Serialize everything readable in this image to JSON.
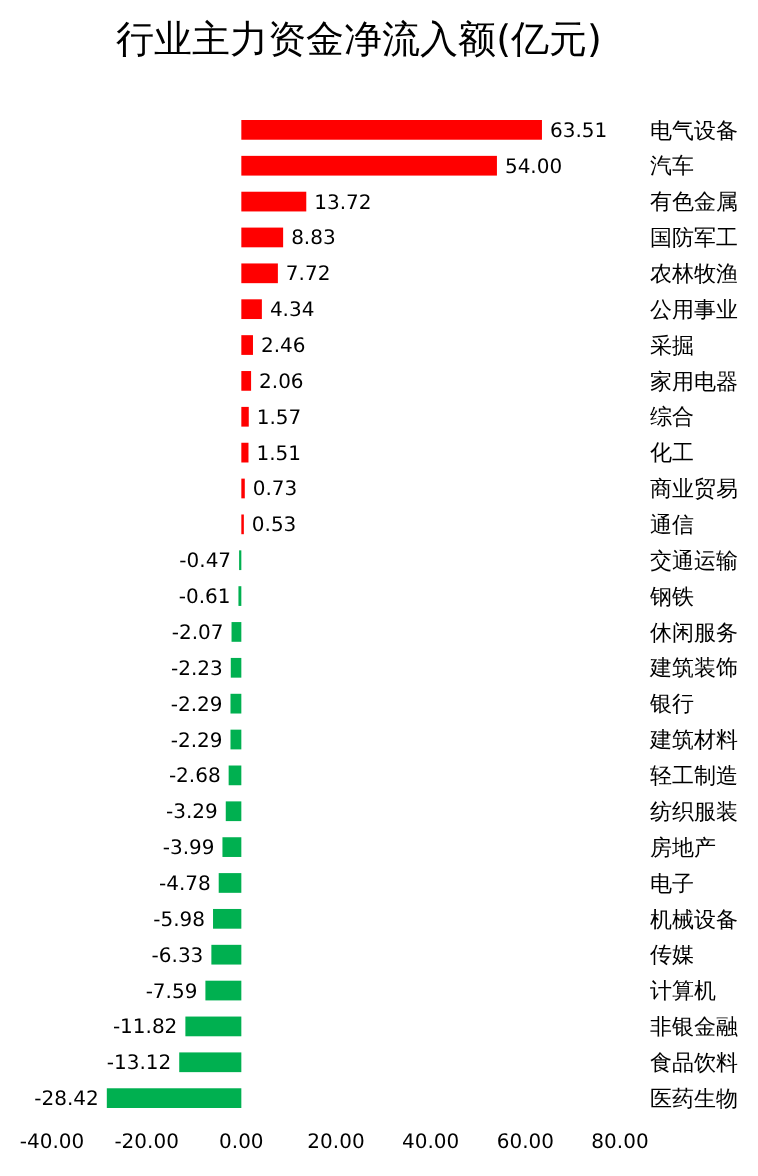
{
  "chart_data": {
    "type": "bar",
    "orientation": "horizontal",
    "title": "行业主力资金净流入额(亿元)",
    "categories": [
      "电气设备",
      "汽车",
      "有色金属",
      "国防军工",
      "农林牧渔",
      "公用事业",
      "采掘",
      "家用电器",
      "综合",
      "化工",
      "商业贸易",
      "通信",
      "交通运输",
      "钢铁",
      "休闲服务",
      "建筑装饰",
      "银行",
      "建筑材料",
      "轻工制造",
      "纺织服装",
      "房地产",
      "电子",
      "机械设备",
      "传媒",
      "计算机",
      "非银金融",
      "食品饮料",
      "医药生物"
    ],
    "values": [
      63.51,
      54.0,
      13.72,
      8.83,
      7.72,
      4.34,
      2.46,
      2.06,
      1.57,
      1.51,
      0.73,
      0.53,
      -0.47,
      -0.61,
      -2.07,
      -2.23,
      -2.29,
      -2.29,
      -2.68,
      -3.29,
      -3.99,
      -4.78,
      -5.98,
      -6.33,
      -7.59,
      -11.82,
      -13.12,
      -28.42
    ],
    "value_labels": [
      "63.51",
      "54.00",
      "13.72",
      "8.83",
      "7.72",
      "4.34",
      "2.46",
      "2.06",
      "1.57",
      "1.51",
      "0.73",
      "0.53",
      "-0.47",
      "-0.61",
      "-2.07",
      "-2.23",
      "-2.29",
      "-2.29",
      "-2.68",
      "-3.29",
      "-3.99",
      "-4.78",
      "-5.98",
      "-6.33",
      "-7.59",
      "-11.82",
      "-13.12",
      "-28.42"
    ],
    "colors": [
      "#ff0000",
      "#ff0000",
      "#ff0000",
      "#ff0000",
      "#ff0000",
      "#ff0000",
      "#ff0000",
      "#ff0000",
      "#ff0000",
      "#ff0000",
      "#ff0000",
      "#ff0000",
      "#00b050",
      "#00b050",
      "#00b050",
      "#00b050",
      "#00b050",
      "#00b050",
      "#00b050",
      "#00b050",
      "#00b050",
      "#00b050",
      "#00b050",
      "#00b050",
      "#00b050",
      "#00b050",
      "#00b050",
      "#00b050"
    ],
    "xlim": [
      -40,
      80
    ],
    "xticks": [
      {
        "value": -40,
        "label": "-40.00"
      },
      {
        "value": -20,
        "label": "-20.00"
      },
      {
        "value": 0,
        "label": "0.00"
      },
      {
        "value": 20,
        "label": "20.00"
      },
      {
        "value": 40,
        "label": "40.00"
      },
      {
        "value": 60,
        "label": "60.00"
      },
      {
        "value": 80,
        "label": "80.00"
      }
    ]
  }
}
